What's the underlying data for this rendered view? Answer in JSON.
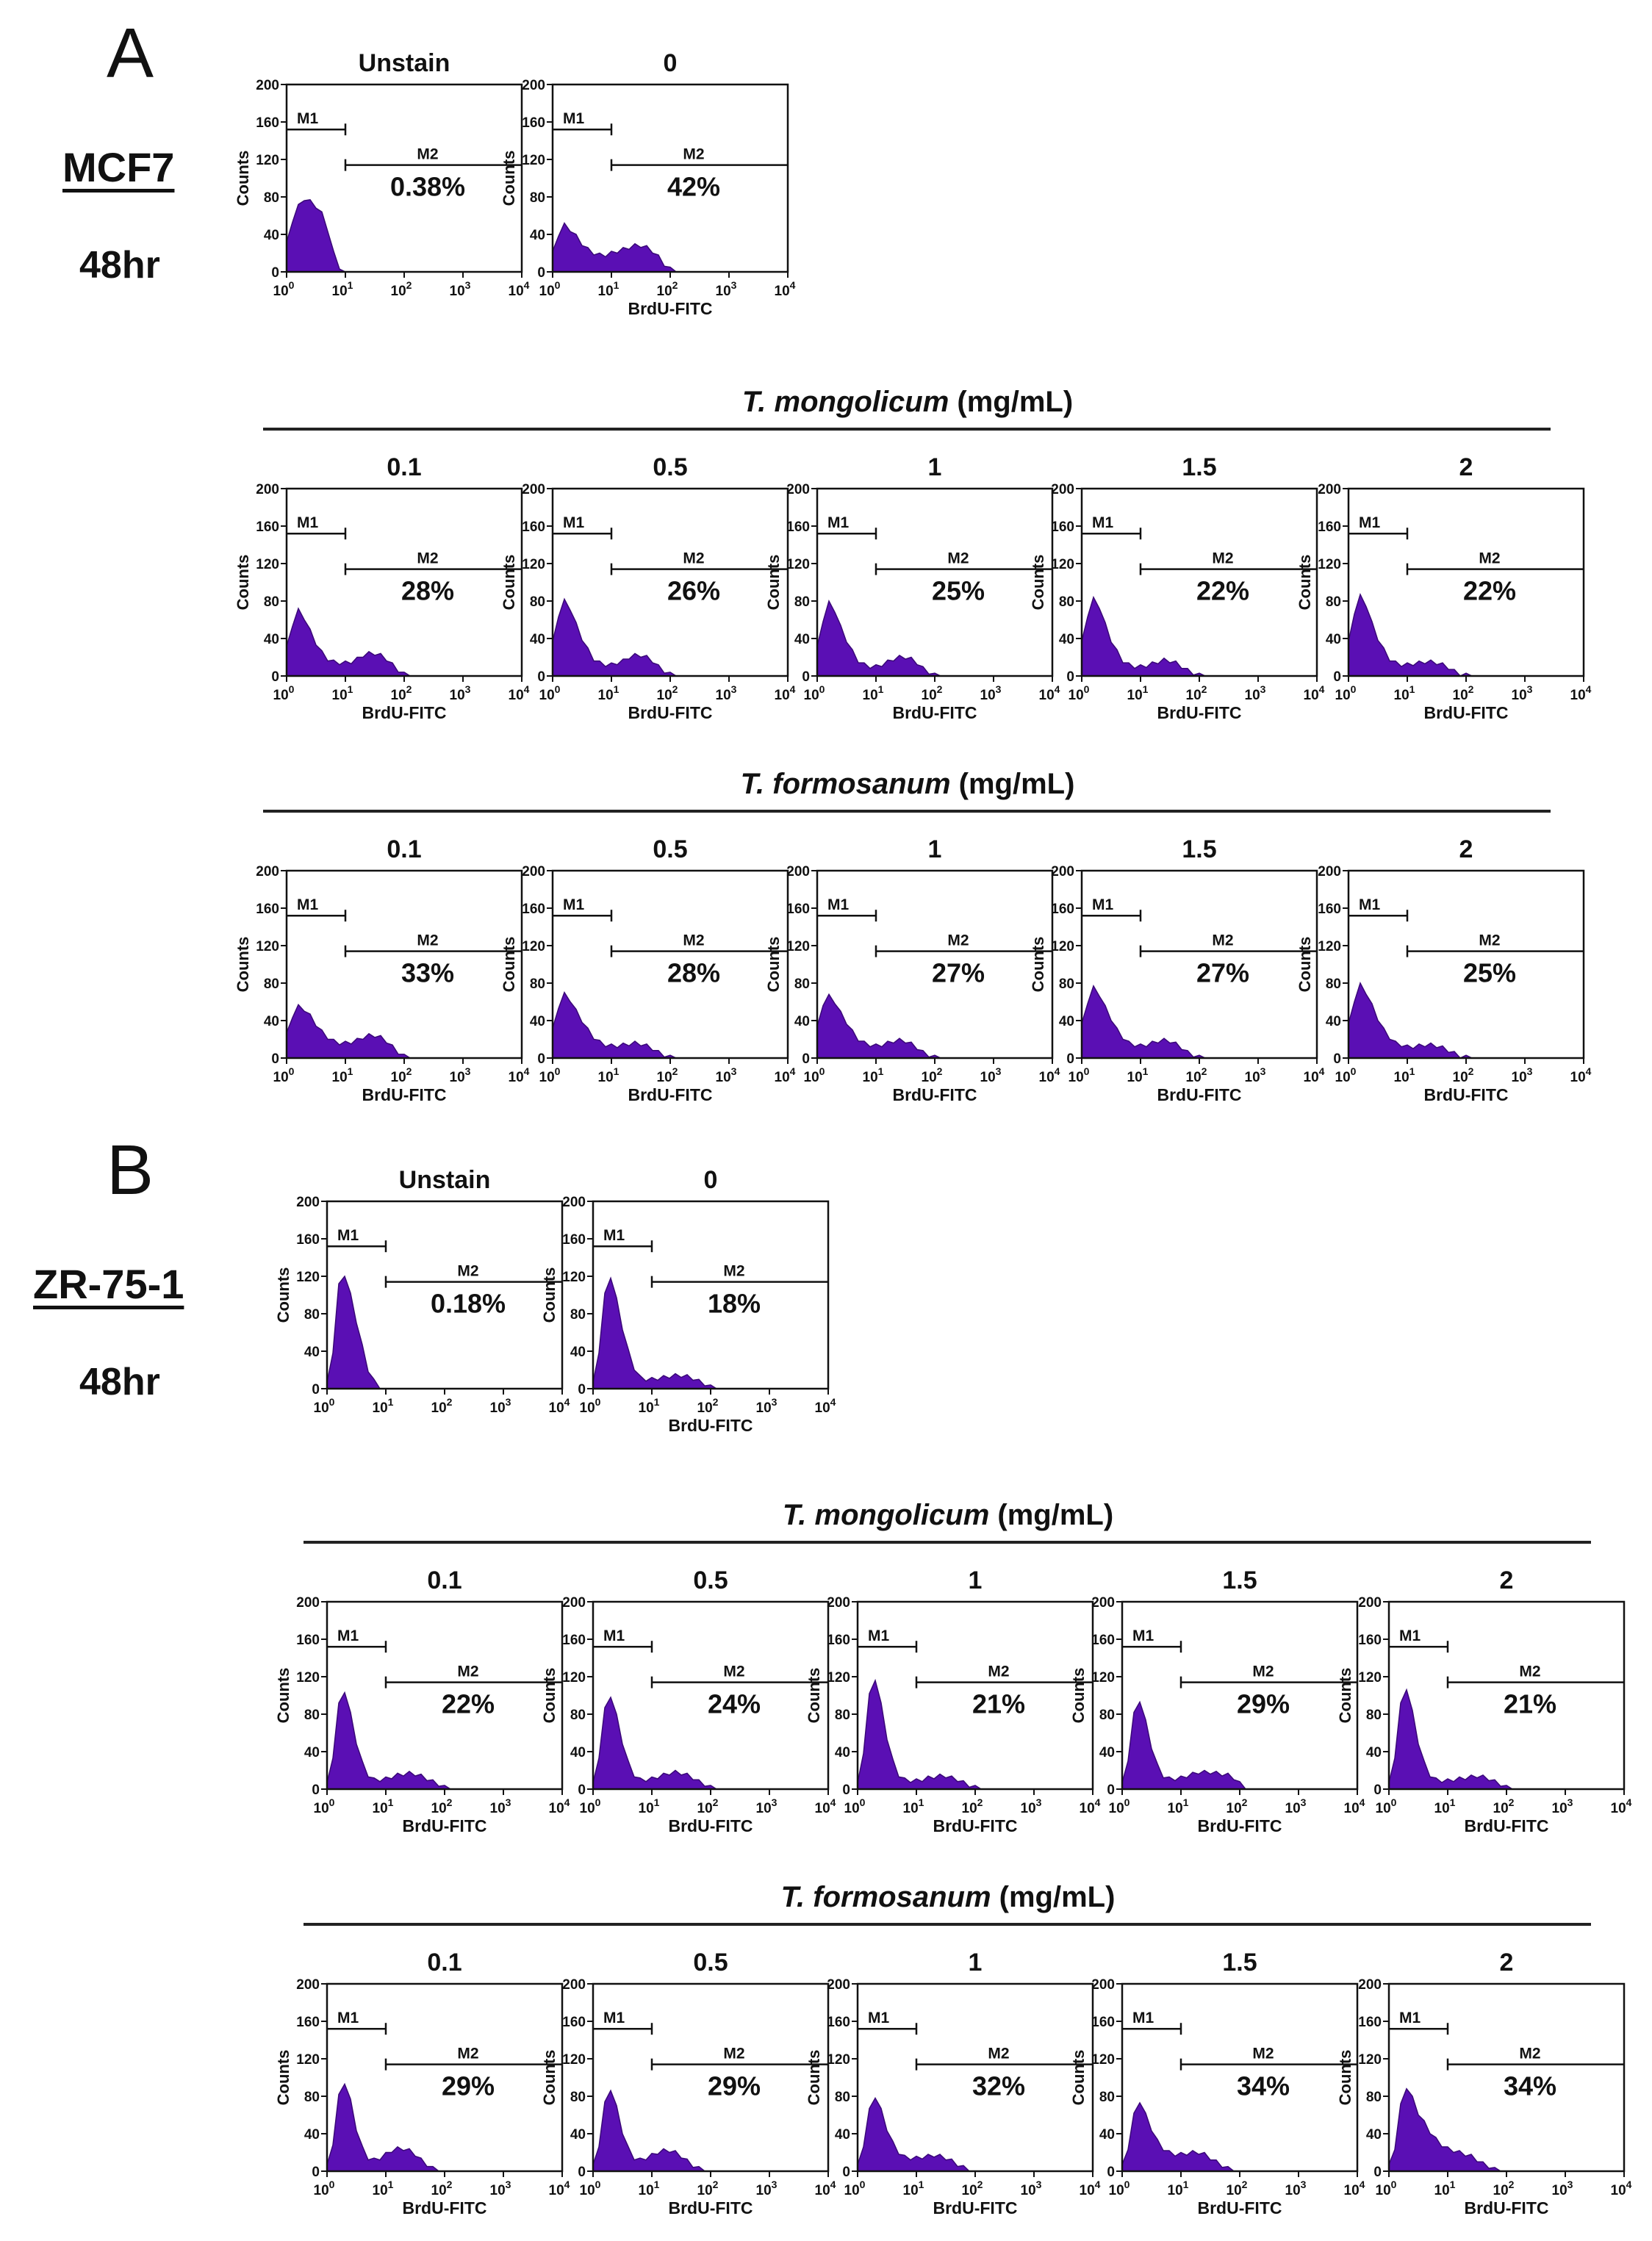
{
  "colors": {
    "histogram_fill": "#5a0fb4",
    "histogram_stroke": "#3a0878",
    "axis": "#111111"
  },
  "labels": {
    "ylabel": "Counts",
    "xlabel": "BrdU-FITC",
    "gate1": "M1",
    "gate2": "M2",
    "yticks": [
      "0",
      "40",
      "80",
      "120",
      "160",
      "200"
    ],
    "xtick_base": "10",
    "xtick_exponents": [
      "0",
      "1",
      "2",
      "3",
      "4"
    ]
  },
  "panels": [
    {
      "letter": "A",
      "cell_line": "MCF7",
      "time": "48hr",
      "controls": [
        {
          "title": "Unstain",
          "m2_percent": "0.38%"
        },
        {
          "title": "0",
          "m2_percent": "42%"
        }
      ],
      "groups": [
        {
          "species": "T. mongolicum",
          "unit": "(mg/mL)",
          "items": [
            {
              "title": "0.1",
              "m2_percent": "28%"
            },
            {
              "title": "0.5",
              "m2_percent": "26%"
            },
            {
              "title": "1",
              "m2_percent": "25%"
            },
            {
              "title": "1.5",
              "m2_percent": "22%"
            },
            {
              "title": "2",
              "m2_percent": "22%"
            }
          ]
        },
        {
          "species": "T. formosanum",
          "unit": "(mg/mL)",
          "items": [
            {
              "title": "0.1",
              "m2_percent": "33%"
            },
            {
              "title": "0.5",
              "m2_percent": "28%"
            },
            {
              "title": "1",
              "m2_percent": "27%"
            },
            {
              "title": "1.5",
              "m2_percent": "27%"
            },
            {
              "title": "2",
              "m2_percent": "25%"
            }
          ]
        }
      ]
    },
    {
      "letter": "B",
      "cell_line": "ZR-75-1",
      "time": "48hr",
      "controls": [
        {
          "title": "Unstain",
          "m2_percent": "0.18%"
        },
        {
          "title": "0",
          "m2_percent": "18%"
        }
      ],
      "groups": [
        {
          "species": "T. mongolicum",
          "unit": "(mg/mL)",
          "items": [
            {
              "title": "0.1",
              "m2_percent": "22%"
            },
            {
              "title": "0.5",
              "m2_percent": "24%"
            },
            {
              "title": "1",
              "m2_percent": "21%"
            },
            {
              "title": "1.5",
              "m2_percent": "29%"
            },
            {
              "title": "2",
              "m2_percent": "21%"
            }
          ]
        },
        {
          "species": "T. formosanum",
          "unit": "(mg/mL)",
          "items": [
            {
              "title": "0.1",
              "m2_percent": "29%"
            },
            {
              "title": "0.5",
              "m2_percent": "29%"
            },
            {
              "title": "1",
              "m2_percent": "32%"
            },
            {
              "title": "1.5",
              "m2_percent": "34%"
            },
            {
              "title": "2",
              "m2_percent": "34%"
            }
          ]
        }
      ]
    }
  ],
  "chart_data": {
    "type": "area",
    "description_axis": {
      "xlabel": "BrdU-FITC",
      "ylabel": "Counts",
      "xscale": "log",
      "xlim": [
        1,
        10000
      ],
      "ylim": [
        0,
        200
      ]
    },
    "x_log10": [
      0,
      0.1,
      0.2,
      0.3,
      0.4,
      0.5,
      0.6,
      0.7,
      0.8,
      0.9,
      1.0,
      1.1,
      1.2,
      1.3,
      1.4,
      1.5,
      1.6,
      1.7,
      1.8,
      1.9,
      2.0,
      2.1,
      2.2,
      2.3,
      2.4,
      2.5
    ],
    "series": [
      {
        "name": "MCF7 Unstain",
        "m2_percent": 0.38,
        "counts": [
          30,
          55,
          70,
          78,
          75,
          70,
          62,
          45,
          20,
          5,
          0,
          0,
          0,
          0,
          0,
          0,
          0,
          0,
          0,
          0,
          0,
          0,
          0,
          0,
          0,
          0
        ]
      },
      {
        "name": "MCF7 0",
        "m2_percent": 42,
        "counts": [
          20,
          40,
          50,
          45,
          38,
          30,
          24,
          20,
          18,
          18,
          20,
          22,
          24,
          26,
          28,
          28,
          26,
          22,
          16,
          8,
          3,
          0,
          0,
          0,
          0,
          0
        ]
      },
      {
        "name": "MCF7 T. mongolicum 0.1",
        "m2_percent": 28,
        "counts": [
          30,
          55,
          70,
          62,
          48,
          35,
          25,
          18,
          15,
          14,
          14,
          15,
          18,
          22,
          24,
          24,
          22,
          18,
          12,
          6,
          2,
          0,
          0,
          0,
          0,
          0
        ]
      },
      {
        "name": "MCF7 T. mongolicum 0.5",
        "m2_percent": 26,
        "counts": [
          35,
          65,
          80,
          72,
          55,
          40,
          28,
          18,
          14,
          12,
          12,
          14,
          16,
          20,
          22,
          22,
          20,
          16,
          10,
          5,
          2,
          0,
          0,
          0,
          0,
          0
        ]
      },
      {
        "name": "MCF7 T. mongolicum 1",
        "m2_percent": 25,
        "counts": [
          30,
          60,
          78,
          70,
          52,
          38,
          26,
          16,
          12,
          10,
          10,
          12,
          15,
          18,
          20,
          20,
          18,
          14,
          8,
          4,
          1,
          0,
          0,
          0,
          0,
          0
        ]
      },
      {
        "name": "MCF7 T. mongolicum 1.5",
        "m2_percent": 22,
        "counts": [
          35,
          65,
          82,
          74,
          55,
          38,
          26,
          16,
          12,
          10,
          10,
          11,
          13,
          15,
          17,
          16,
          14,
          10,
          6,
          3,
          1,
          0,
          0,
          0,
          0,
          0
        ]
      },
      {
        "name": "MCF7 T. mongolicum 2",
        "m2_percent": 22,
        "counts": [
          35,
          68,
          85,
          76,
          56,
          40,
          28,
          18,
          14,
          12,
          12,
          13,
          14,
          15,
          15,
          14,
          12,
          9,
          5,
          2,
          1,
          0,
          0,
          0,
          0,
          0
        ]
      },
      {
        "name": "MCF7 T. formosanum 0.1",
        "m2_percent": 33,
        "counts": [
          25,
          45,
          55,
          52,
          45,
          36,
          28,
          22,
          18,
          16,
          16,
          17,
          19,
          22,
          24,
          24,
          22,
          18,
          12,
          6,
          2,
          0,
          0,
          0,
          0,
          0
        ]
      },
      {
        "name": "MCF7 T. formosanum 0.5",
        "m2_percent": 28,
        "counts": [
          30,
          55,
          68,
          62,
          50,
          40,
          30,
          22,
          17,
          14,
          13,
          13,
          14,
          15,
          16,
          15,
          13,
          10,
          6,
          3,
          1,
          0,
          0,
          0,
          0,
          0
        ]
      },
      {
        "name": "MCF7 T. formosanum 1",
        "m2_percent": 27,
        "counts": [
          32,
          58,
          66,
          60,
          48,
          38,
          28,
          20,
          16,
          14,
          13,
          14,
          16,
          18,
          19,
          18,
          15,
          11,
          6,
          3,
          1,
          0,
          0,
          0,
          0,
          0
        ]
      },
      {
        "name": "MCF7 T. formosanum 1.5",
        "m2_percent": 27,
        "counts": [
          35,
          60,
          75,
          68,
          54,
          42,
          30,
          22,
          16,
          14,
          13,
          14,
          16,
          18,
          19,
          18,
          15,
          11,
          6,
          3,
          1,
          0,
          0,
          0,
          0,
          0
        ]
      },
      {
        "name": "MCF7 T. formosanum 2",
        "m2_percent": 25,
        "counts": [
          35,
          62,
          78,
          70,
          56,
          42,
          30,
          22,
          16,
          14,
          12,
          12,
          13,
          14,
          14,
          13,
          11,
          8,
          5,
          2,
          1,
          0,
          0,
          0,
          0,
          0
        ]
      },
      {
        "name": "ZR-75-1 Unstain",
        "m2_percent": 0.18,
        "counts": [
          5,
          40,
          110,
          122,
          100,
          72,
          45,
          20,
          8,
          2,
          0,
          0,
          0,
          0,
          0,
          0,
          0,
          0,
          0,
          0,
          0,
          0,
          0,
          0,
          0,
          0
        ]
      },
      {
        "name": "ZR-75-1 0",
        "m2_percent": 18,
        "counts": [
          5,
          40,
          100,
          120,
          95,
          65,
          40,
          22,
          12,
          10,
          10,
          11,
          12,
          13,
          14,
          14,
          13,
          11,
          8,
          5,
          2,
          0,
          0,
          0,
          0,
          0
        ]
      },
      {
        "name": "ZR-75-1 T. mongolicum 0.1",
        "m2_percent": 22,
        "counts": [
          5,
          35,
          90,
          105,
          80,
          50,
          28,
          15,
          10,
          10,
          11,
          13,
          15,
          16,
          17,
          16,
          14,
          11,
          8,
          5,
          2,
          0,
          0,
          0,
          0,
          0
        ]
      },
      {
        "name": "ZR-75-1 T. mongolicum 0.5",
        "m2_percent": 24,
        "counts": [
          5,
          35,
          85,
          100,
          78,
          50,
          28,
          15,
          10,
          10,
          11,
          13,
          15,
          17,
          18,
          17,
          15,
          12,
          8,
          5,
          2,
          0,
          0,
          0,
          0,
          0
        ]
      },
      {
        "name": "ZR-75-1 T. mongolicum 1",
        "m2_percent": 21,
        "counts": [
          5,
          40,
          100,
          118,
          90,
          55,
          30,
          15,
          10,
          9,
          9,
          10,
          12,
          13,
          14,
          14,
          12,
          10,
          7,
          4,
          2,
          0,
          0,
          0,
          0,
          0
        ]
      },
      {
        "name": "ZR-75-1 T. mongolicum 1.5",
        "m2_percent": 29,
        "counts": [
          5,
          32,
          80,
          95,
          72,
          45,
          25,
          14,
          11,
          11,
          12,
          14,
          16,
          18,
          18,
          18,
          17,
          16,
          15,
          12,
          6,
          0,
          0,
          0,
          0,
          0
        ]
      },
      {
        "name": "ZR-75-1 T. mongolicum 2",
        "m2_percent": 21,
        "counts": [
          5,
          35,
          90,
          108,
          82,
          50,
          28,
          15,
          10,
          9,
          9,
          10,
          11,
          12,
          13,
          14,
          13,
          11,
          8,
          5,
          2,
          0,
          0,
          0,
          0,
          0
        ]
      },
      {
        "name": "ZR-75-1 T. formosanum 0.1",
        "m2_percent": 29,
        "counts": [
          5,
          30,
          80,
          95,
          75,
          45,
          25,
          14,
          12,
          14,
          18,
          22,
          24,
          24,
          22,
          18,
          12,
          7,
          3,
          1,
          0,
          0,
          0,
          0,
          0,
          0
        ]
      },
      {
        "name": "ZR-75-1 T. formosanum 0.5",
        "m2_percent": 29,
        "counts": [
          5,
          28,
          72,
          88,
          68,
          42,
          24,
          14,
          12,
          14,
          17,
          20,
          22,
          22,
          20,
          16,
          11,
          6,
          3,
          1,
          0,
          0,
          0,
          0,
          0,
          0
        ]
      },
      {
        "name": "ZR-75-1 T. formosanum 1",
        "m2_percent": 32,
        "counts": [
          5,
          28,
          65,
          80,
          65,
          45,
          30,
          20,
          15,
          14,
          14,
          15,
          16,
          17,
          16,
          14,
          11,
          7,
          4,
          2,
          0,
          0,
          0,
          0,
          0,
          0
        ]
      },
      {
        "name": "ZR-75-1 T. formosanum 1.5",
        "m2_percent": 34,
        "counts": [
          5,
          25,
          60,
          75,
          60,
          45,
          32,
          24,
          20,
          18,
          18,
          19,
          20,
          20,
          18,
          14,
          10,
          6,
          3,
          1,
          0,
          0,
          0,
          0,
          0,
          0
        ]
      },
      {
        "name": "ZR-75-1 T. formosanum 2",
        "m2_percent": 34,
        "counts": [
          5,
          25,
          70,
          90,
          78,
          62,
          52,
          42,
          34,
          28,
          24,
          22,
          20,
          18,
          16,
          12,
          8,
          5,
          2,
          1,
          0,
          0,
          0,
          0,
          0,
          0
        ]
      }
    ]
  }
}
